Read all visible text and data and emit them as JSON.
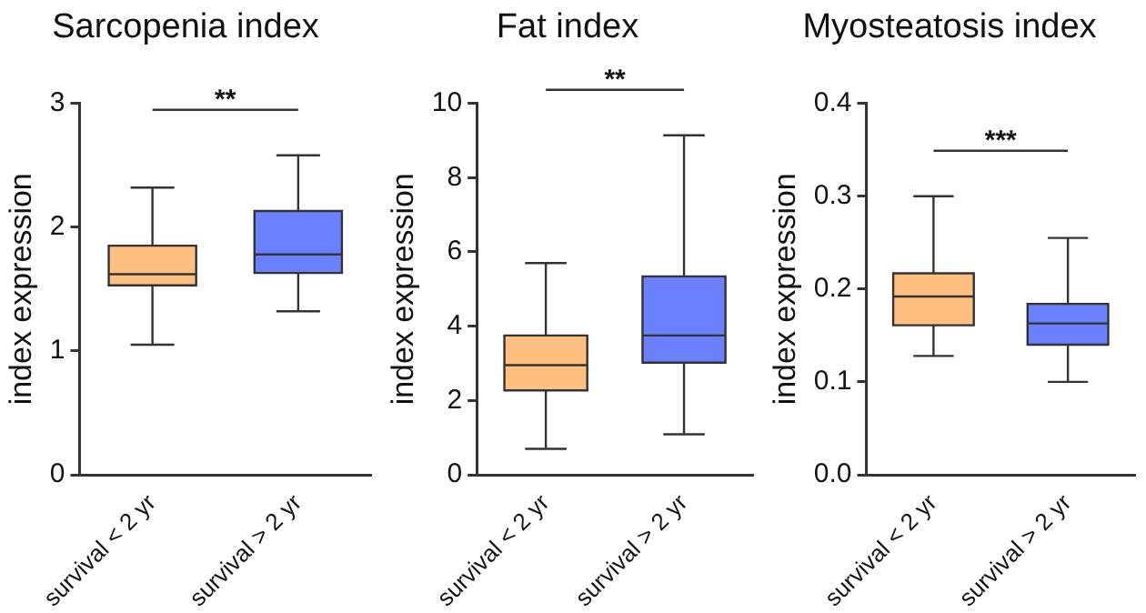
{
  "chart_data": [
    {
      "type": "box",
      "title": "Sarcopenia index",
      "ylabel": "index expression",
      "categories": [
        "survival < 2 yr",
        "survival > 2 yr"
      ],
      "colors": [
        "#ffbf80",
        "#6b80ff"
      ],
      "boxes": [
        {
          "low": 1.05,
          "q1": 1.53,
          "median": 1.62,
          "q3": 1.85,
          "high": 2.32
        },
        {
          "low": 1.32,
          "q1": 1.63,
          "median": 1.78,
          "q3": 2.13,
          "high": 2.58
        }
      ],
      "ylim": [
        0,
        3
      ],
      "yticks": [
        0,
        1,
        2,
        3
      ],
      "grid": false,
      "annotations": [
        "**"
      ]
    },
    {
      "type": "box",
      "title": "Fat index",
      "ylabel": "index expression",
      "categories": [
        "survival < 2 yr",
        "survival > 2 yr"
      ],
      "colors": [
        "#ffbf80",
        "#6b80ff"
      ],
      "boxes": [
        {
          "low": 0.7,
          "q1": 2.27,
          "median": 2.95,
          "q3": 3.75,
          "high": 5.7
        },
        {
          "low": 1.09,
          "q1": 3.02,
          "median": 3.75,
          "q3": 5.34,
          "high": 9.14
        }
      ],
      "ylim": [
        0,
        10
      ],
      "yticks": [
        0,
        2,
        4,
        6,
        8,
        10
      ],
      "grid": false,
      "annotations": [
        "**"
      ]
    },
    {
      "type": "box",
      "title": "Myosteatosis index",
      "ylabel": "index expression",
      "categories": [
        "survival < 2 yr",
        "survival > 2 yr"
      ],
      "colors": [
        "#ffbf80",
        "#6b80ff"
      ],
      "boxes": [
        {
          "low": 0.128,
          "q1": 0.161,
          "median": 0.192,
          "q3": 0.217,
          "high": 0.3
        },
        {
          "low": 0.1,
          "q1": 0.14,
          "median": 0.163,
          "q3": 0.184,
          "high": 0.255
        }
      ],
      "ylim": [
        0,
        0.4
      ],
      "yticks": [
        {
          "value": 0,
          "label": "0.0"
        },
        {
          "value": 0.1,
          "label": "0.1"
        },
        {
          "value": 0.2,
          "label": "0.2"
        },
        {
          "value": 0.3,
          "label": "0.3"
        },
        {
          "value": 0.4,
          "label": "0.4"
        }
      ],
      "grid": false,
      "annotations": [
        "***"
      ]
    }
  ]
}
